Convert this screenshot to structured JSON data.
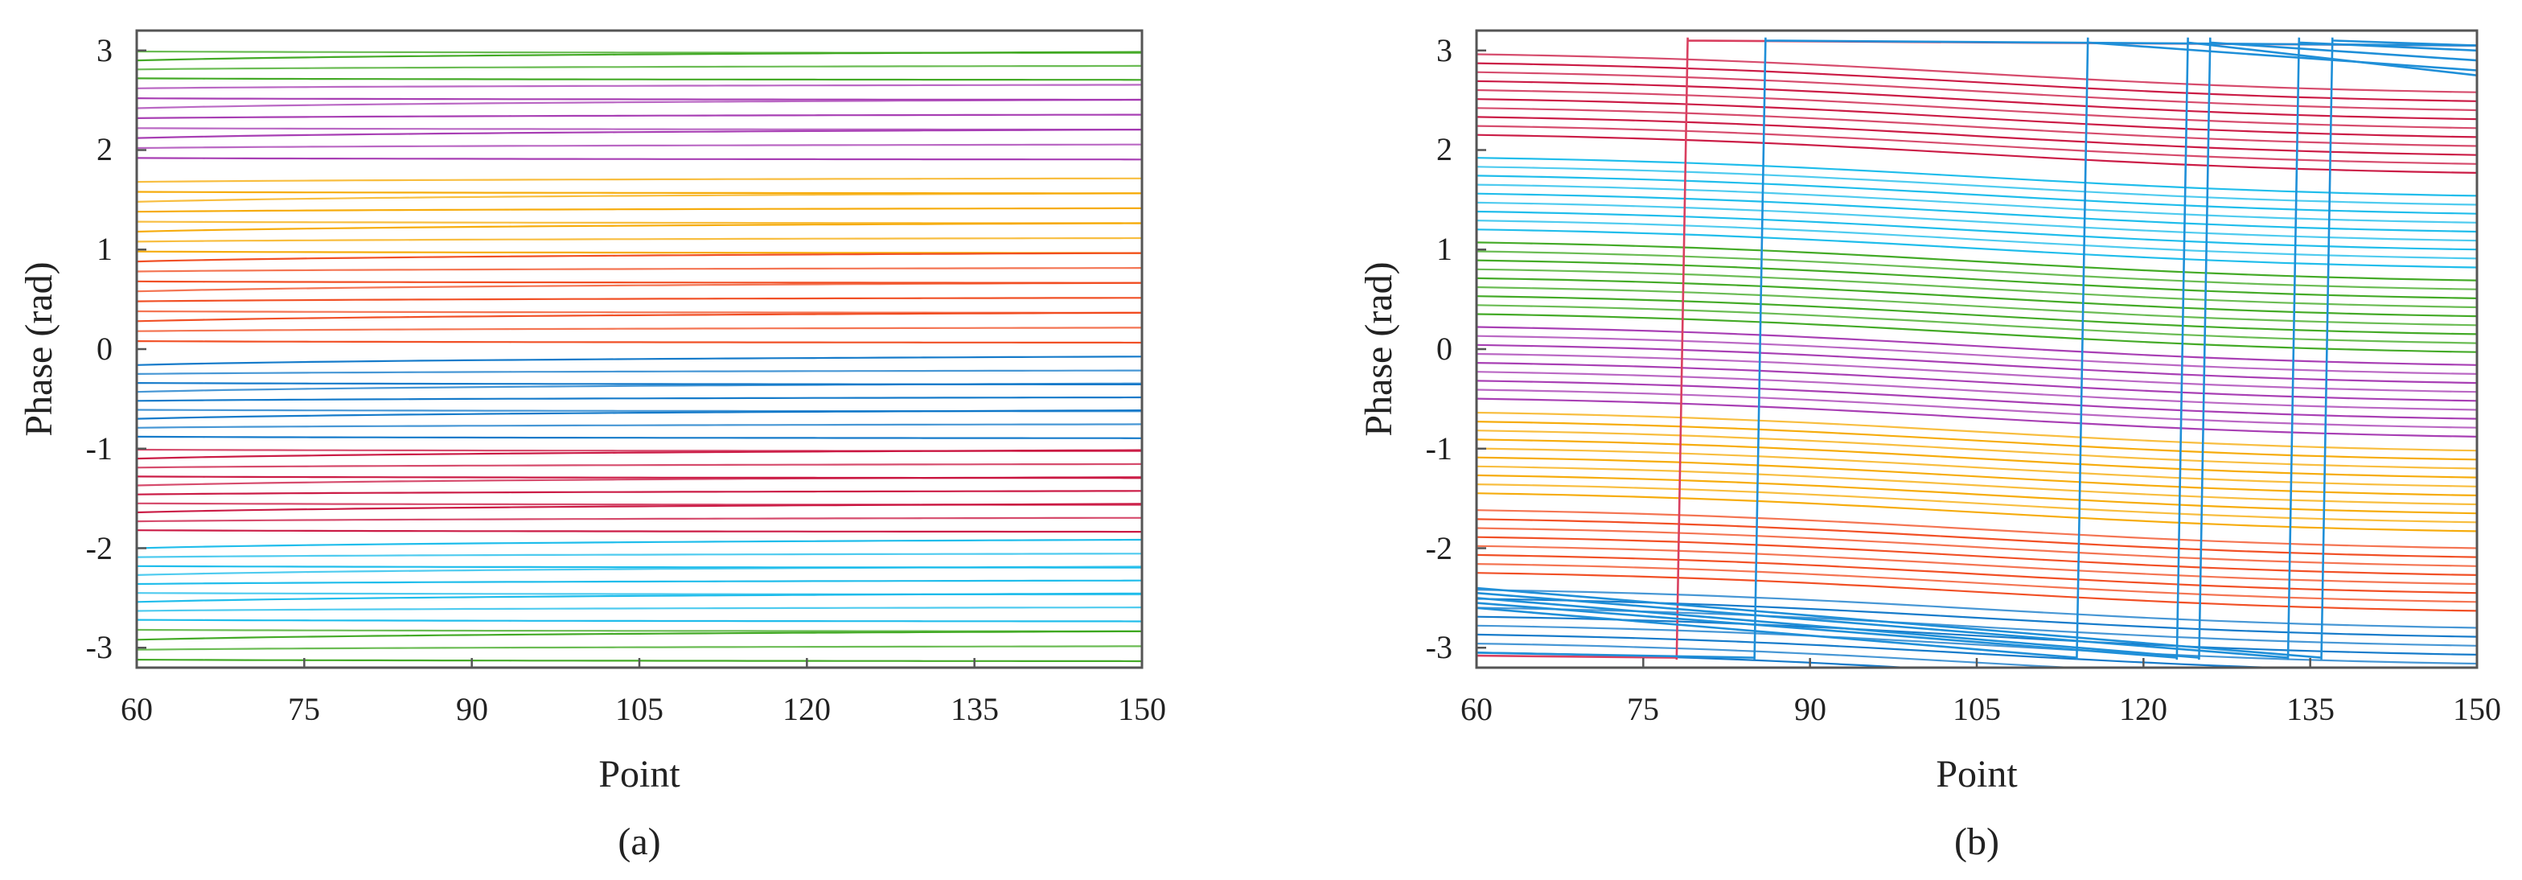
{
  "chart_data": [
    {
      "type": "line",
      "caption": "(a)",
      "xlabel": "Point",
      "ylabel": "Phase (rad)",
      "xlim": [
        60,
        150
      ],
      "ylim": [
        -3.2,
        3.2
      ],
      "xticks": [
        60,
        75,
        90,
        105,
        120,
        135,
        150
      ],
      "xtick_labels": [
        "60",
        "75",
        "90",
        "105",
        "120",
        "135",
        "150"
      ],
      "yticks": [
        3,
        2,
        1,
        0,
        -1,
        -2,
        -3
      ],
      "ytick_labels": [
        "3",
        "2",
        "1",
        "0",
        "-1",
        "-2",
        "-3"
      ],
      "wrap": false,
      "slope_per_line": 0.05,
      "groups": [
        {
          "color": "#3aa51b",
          "start": 2.72,
          "spacing": 0.09,
          "count": 4
        },
        {
          "color": "#a335b0",
          "start": 1.92,
          "spacing": 0.1,
          "count": 8
        },
        {
          "color": "#f5a800",
          "start": 0.98,
          "spacing": 0.1,
          "count": 8
        },
        {
          "color": "#f0471a",
          "start": 0.08,
          "spacing": 0.1,
          "count": 9
        },
        {
          "color": "#0a74c7",
          "start": -0.88,
          "spacing": 0.09,
          "count": 9
        },
        {
          "color": "#c8103c",
          "start": -1.82,
          "spacing": 0.09,
          "count": 10
        },
        {
          "color": "#14b9ea",
          "start": -2.72,
          "spacing": 0.09,
          "count": 9
        },
        {
          "color": "#3aa51b",
          "start": -3.12,
          "spacing": 0.1,
          "count": 4
        }
      ]
    },
    {
      "type": "line",
      "caption": "(b)",
      "xlabel": "Point",
      "ylabel": "Phase (rad)",
      "xlim": [
        60,
        150
      ],
      "ylim": [
        -3.2,
        3.2
      ],
      "xticks": [
        60,
        75,
        90,
        105,
        120,
        135,
        150
      ],
      "xtick_labels": [
        "60",
        "75",
        "90",
        "105",
        "120",
        "135",
        "150"
      ],
      "yticks": [
        3,
        2,
        1,
        0,
        -1,
        -2,
        -3
      ],
      "ytick_labels": [
        "3",
        "2",
        "1",
        "0",
        "-1",
        "-2",
        "-3"
      ],
      "wrap": true,
      "decline": 0.45,
      "groups": [
        {
          "color": "#c8103c",
          "start": 2.15,
          "spacing": 0.09,
          "count": 10
        },
        {
          "color": "#14b9ea",
          "start": 1.2,
          "spacing": 0.09,
          "count": 9
        },
        {
          "color": "#3aa51b",
          "start": 0.35,
          "spacing": 0.09,
          "count": 9
        },
        {
          "color": "#a335b0",
          "start": -0.5,
          "spacing": 0.09,
          "count": 9
        },
        {
          "color": "#f5a800",
          "start": -1.45,
          "spacing": 0.09,
          "count": 10
        },
        {
          "color": "#f0471a",
          "start": -2.25,
          "spacing": 0.09,
          "count": 8
        },
        {
          "color": "#0a74c7",
          "start": -3.05,
          "spacing": 0.09,
          "count": 8
        }
      ],
      "wrap_lines": [
        {
          "color": "#d94060",
          "x": [
            60,
            78,
            78,
            79,
            79,
            150
          ],
          "y": [
            -3.08,
            -3.1,
            -3.12,
            3.13,
            3.1,
            3.05
          ]
        },
        {
          "color": "#1f8fd8",
          "x": [
            60,
            85,
            85,
            86,
            86,
            150
          ],
          "y": [
            -3.05,
            -3.1,
            -3.12,
            3.13,
            3.1,
            3.05
          ]
        },
        {
          "color": "#1f8fd8",
          "x": [
            60,
            114,
            114,
            115,
            115,
            150
          ],
          "y": [
            -2.6,
            -3.1,
            -3.12,
            3.13,
            3.08,
            2.8
          ]
        },
        {
          "color": "#1f8fd8",
          "x": [
            60,
            123,
            123,
            124,
            124,
            150
          ],
          "y": [
            -2.55,
            -3.1,
            -3.12,
            3.13,
            3.08,
            2.75
          ]
        },
        {
          "color": "#1f8fd8",
          "x": [
            60,
            125,
            125,
            126,
            126,
            150
          ],
          "y": [
            -2.5,
            -3.1,
            -3.12,
            3.13,
            3.08,
            2.9
          ]
        },
        {
          "color": "#1f8fd8",
          "x": [
            60,
            133,
            133,
            134,
            134,
            150
          ],
          "y": [
            -2.45,
            -3.1,
            -3.12,
            3.13,
            3.08,
            3.0
          ]
        },
        {
          "color": "#1f8fd8",
          "x": [
            60,
            136,
            136,
            137,
            137,
            150
          ],
          "y": [
            -2.4,
            -3.1,
            -3.12,
            3.13,
            3.1,
            3.05
          ]
        }
      ]
    }
  ]
}
